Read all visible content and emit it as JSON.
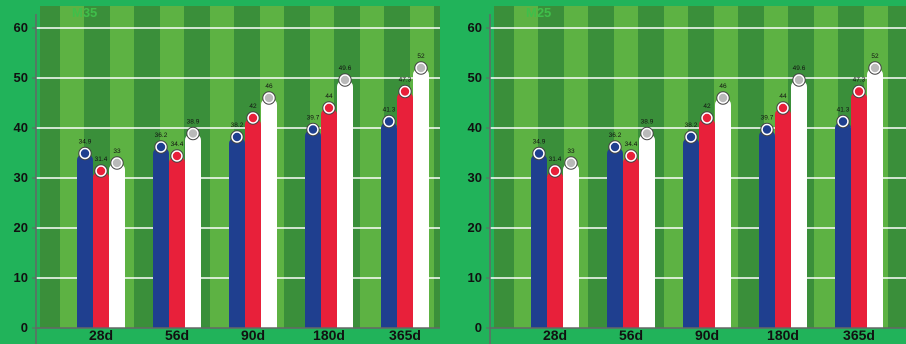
{
  "chart_data": [
    {
      "type": "bar",
      "title": "M35",
      "categories": [
        "28d",
        "56d",
        "90d",
        "180d",
        "365d"
      ],
      "series": [
        {
          "values": [
            34.9,
            36.2,
            38.2,
            39.7,
            41.3
          ]
        },
        {
          "values": [
            31.4,
            34.4,
            42,
            44,
            47.3
          ]
        },
        {
          "values": [
            33,
            38.9,
            46,
            49.6,
            52
          ]
        }
      ],
      "ylim": [
        0,
        60
      ],
      "yticks": [
        0,
        10,
        20,
        30,
        40,
        50,
        60
      ],
      "grid": "horizontal"
    },
    {
      "type": "bar",
      "title": "M25",
      "categories": [
        "28d",
        "56d",
        "90d",
        "180d",
        "365d"
      ],
      "series": [
        {
          "values": [
            34.9,
            36.2,
            38.2,
            39.7,
            41.3
          ]
        },
        {
          "values": [
            31.4,
            34.4,
            42,
            44,
            47.3
          ]
        },
        {
          "values": [
            33,
            38.9,
            46,
            49.6,
            52
          ]
        }
      ],
      "ylim": [
        0,
        60
      ],
      "yticks": [
        0,
        10,
        20,
        30,
        40,
        50,
        60
      ],
      "grid": "horizontal"
    }
  ],
  "colors": {
    "background": "#21b35a",
    "plot_dark": "#3a8f3a",
    "plot_light": "#5db243",
    "title": "#3fbf4a",
    "grid": "#ffffff",
    "axis": "#666666",
    "series": [
      "#1f3f8f",
      "#e8203a",
      "#ffffff"
    ],
    "marker_fill": [
      "#1f3f8f",
      "#e8203a",
      "#b9b9b9"
    ]
  }
}
